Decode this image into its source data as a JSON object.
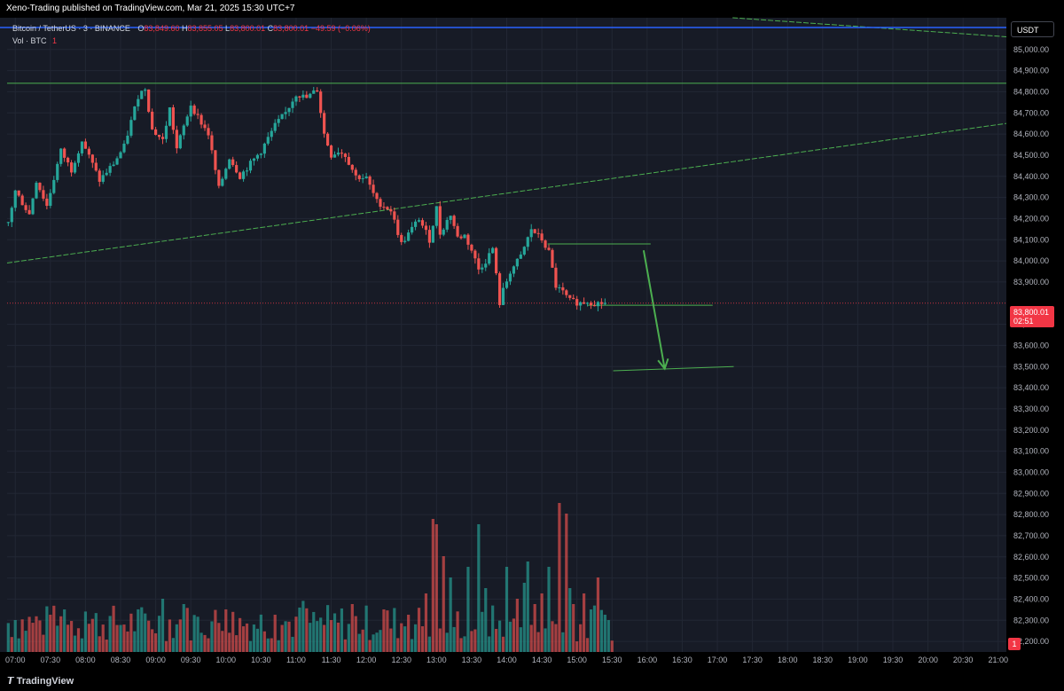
{
  "header": {
    "published_text": "Xeno-Trading published on TradingView.com, Mar 21, 2025 15:30 UTC+7"
  },
  "legend": {
    "symbol": "Bitcoin / TetherUS · 3 · BINANCE",
    "o_label": "O",
    "o_value": "83,849.60",
    "h_label": "H",
    "h_value": "83,855.05",
    "l_label": "L",
    "l_value": "83,800.01",
    "c_label": "C",
    "c_value": "83,800.01",
    "change": "−49.59 (−0.06%)",
    "vol_label": "Vol · BTC",
    "vol_value": "1"
  },
  "currency_badge": "USDT",
  "price_label": {
    "price": "83,800.01",
    "countdown": "02:51"
  },
  "volume_badge": "1",
  "footer": {
    "logo_text": "TradingView"
  },
  "colors": {
    "up": "#26a69a",
    "down": "#ef5350",
    "background": "#171b26",
    "drawing": "#4caf50"
  },
  "chart_data": {
    "type": "candlestick",
    "symbol": "BTCUSDT",
    "interval": "3",
    "y_ticks": [
      "85,000.00",
      "84,900.00",
      "84,800.00",
      "84,700.00",
      "84,600.00",
      "84,500.00",
      "84,400.00",
      "84,300.00",
      "84,200.00",
      "84,100.00",
      "84,000.00",
      "83,900.00",
      "83,700.00",
      "83,600.00",
      "83,500.00",
      "83,400.00",
      "83,300.00",
      "83,200.00",
      "83,100.00",
      "83,000.00",
      "82,900.00",
      "82,800.00",
      "82,700.00",
      "82,600.00",
      "82,500.00",
      "82,400.00",
      "82,300.00",
      "82,200.00"
    ],
    "y_tick_values": [
      85000,
      84900,
      84800,
      84700,
      84600,
      84500,
      84400,
      84300,
      84200,
      84100,
      84000,
      83900,
      83700,
      83600,
      83500,
      83400,
      83300,
      83200,
      83100,
      83000,
      82900,
      82800,
      82700,
      82600,
      82500,
      82400,
      82300,
      82200
    ],
    "ylim": [
      82150,
      85150
    ],
    "x_ticks": [
      "07:00",
      "07:30",
      "08:00",
      "08:30",
      "09:00",
      "09:30",
      "10:00",
      "10:30",
      "11:00",
      "11:30",
      "12:00",
      "12:30",
      "13:00",
      "13:30",
      "14:00",
      "14:30",
      "15:00",
      "15:30",
      "16:00",
      "16:30",
      "17:00",
      "17:30",
      "18:00",
      "18:30",
      "19:00",
      "19:30",
      "20:00",
      "20:30",
      "21:00"
    ],
    "x_tick_minutes": [
      420,
      450,
      480,
      510,
      540,
      570,
      600,
      630,
      660,
      690,
      720,
      750,
      780,
      810,
      840,
      870,
      900,
      930,
      960,
      990,
      1020,
      1050,
      1080,
      1110,
      1140,
      1170,
      1200,
      1230,
      1260
    ],
    "xlim_minutes": [
      413,
      1267
    ],
    "close_anchors_minutes": [
      414,
      420,
      432,
      438,
      447,
      459,
      468,
      477,
      492,
      504,
      513,
      525,
      531,
      537,
      546,
      552,
      558,
      570,
      576,
      585,
      594,
      603,
      612,
      621,
      630,
      642,
      651,
      660,
      669,
      678,
      684,
      690,
      696,
      702,
      711,
      720,
      729,
      741,
      750,
      765,
      774,
      780,
      783,
      792,
      798,
      804,
      810,
      816,
      822,
      828,
      834,
      837,
      843,
      852,
      861,
      870,
      876,
      882,
      888,
      894,
      903,
      909,
      915,
      924
    ],
    "close_anchors_values": [
      84180,
      84330,
      84220,
      84380,
      84260,
      84520,
      84430,
      84570,
      84380,
      84460,
      84540,
      84780,
      84820,
      84620,
      84570,
      84720,
      84530,
      84740,
      84680,
      84600,
      84340,
      84490,
      84400,
      84460,
      84520,
      84640,
      84700,
      84790,
      84770,
      84810,
      84600,
      84500,
      84520,
      84500,
      84400,
      84390,
      84280,
      84240,
      84080,
      84200,
      84100,
      84250,
      84130,
      84220,
      84110,
      84120,
      84050,
      83960,
      84000,
      84060,
      83800,
      83860,
      83950,
      84020,
      84150,
      84100,
      84040,
      83880,
      83850,
      83810,
      83800,
      83810,
      83800,
      83800
    ],
    "volume_minutes": [
      882,
      900,
      918,
      936,
      939,
      942,
      945,
      948,
      951,
      954,
      957,
      960,
      963,
      966,
      969,
      972,
      975,
      978,
      981,
      984,
      987,
      990,
      993,
      996,
      999,
      1002,
      1005,
      1008,
      1011,
      1014,
      1017,
      1020,
      1023,
      1026,
      1029,
      1032,
      1035,
      1038,
      1041,
      1044,
      1047,
      1050,
      1053,
      1056,
      1059,
      1062,
      1065,
      1068,
      1071,
      1074,
      1077,
      1080,
      1083,
      1086,
      1089,
      1092,
      1095,
      1098,
      1101,
      1104,
      1107,
      1110,
      1113,
      1116,
      1119,
      1122,
      1125,
      1128,
      1131,
      1134,
      1137,
      1140,
      1143,
      1146,
      1149,
      1152,
      1155,
      1158,
      1161,
      1164,
      1167,
      1170,
      1173,
      1176,
      1179,
      1182,
      1185,
      1188,
      1191,
      1194,
      1197,
      1200,
      1203,
      1206,
      1209,
      1212,
      1215,
      1218,
      1221,
      1224,
      1227,
      1230,
      1233,
      1236,
      1239,
      1242,
      1245,
      1248,
      1251,
      1254,
      1257,
      1260,
      1263
    ],
    "volume_peaks_minutes": [
      420,
      450,
      462,
      480,
      528,
      546,
      564,
      600,
      642,
      666,
      690,
      708,
      735,
      756,
      771,
      777,
      780,
      786,
      792,
      807,
      816,
      822,
      840,
      849,
      855,
      858,
      864,
      870,
      876,
      885,
      891,
      894,
      897,
      906,
      912,
      918,
      924
    ],
    "volume_peaks": [
      30,
      35,
      40,
      38,
      42,
      50,
      45,
      40,
      35,
      48,
      30,
      45,
      40,
      35,
      55,
      125,
      120,
      90,
      70,
      80,
      120,
      60,
      80,
      50,
      65,
      85,
      45,
      55,
      80,
      140,
      130,
      60,
      45,
      55,
      40,
      70,
      35
    ],
    "drawings": {
      "hline_top": 84840,
      "trendline_start": [
        413,
        83990
      ],
      "trendline_end": [
        1267,
        84650
      ],
      "trendline_upper_start": [
        1033,
        85150
      ],
      "trendline_upper_end": [
        1267,
        85060
      ],
      "support_1": {
        "from": 875,
        "to": 963,
        "price": 84080
      },
      "support_2": {
        "from": 909,
        "to": 1016,
        "price": 83790
      },
      "target": {
        "from": 931,
        "to": 1034,
        "price": 83480,
        "price_end": 83500
      },
      "arrow_from": [
        957,
        84050
      ],
      "arrow_to": [
        975,
        83490
      ]
    },
    "last_price": 83800.01
  }
}
